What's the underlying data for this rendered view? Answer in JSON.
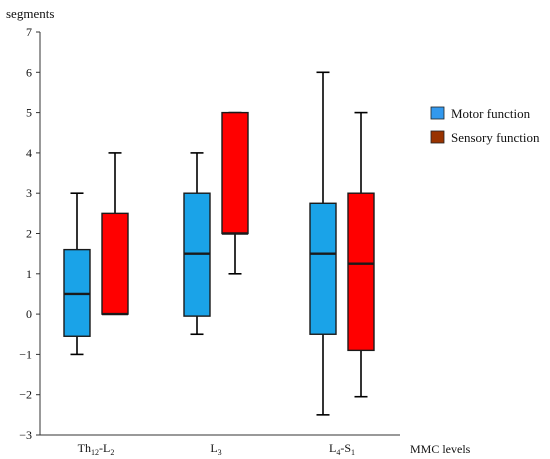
{
  "chart_data": {
    "type": "box",
    "ylabel": "segments",
    "xlabel": "MMC levels",
    "ylim": [
      -3,
      7
    ],
    "yticks": [
      -3,
      -2,
      -1,
      0,
      1,
      2,
      3,
      4,
      5,
      6,
      7
    ],
    "categories": [
      {
        "main": "Th",
        "sub1": "12",
        "mid": "-L",
        "sub2": "2"
      },
      {
        "main": "L",
        "sub1": "3",
        "mid": "",
        "sub2": ""
      },
      {
        "main": "L",
        "sub1": "4",
        "mid": "-S",
        "sub2": "1"
      }
    ],
    "series": [
      {
        "name": "Motor function",
        "color": "#1aa3e8",
        "legend_color": "#3399ee",
        "boxes": [
          {
            "min": -1,
            "q1": -0.55,
            "median": 0.5,
            "q3": 1.6,
            "max": 3
          },
          {
            "min": -0.5,
            "q1": -0.05,
            "median": 1.5,
            "q3": 3,
            "max": 4
          },
          {
            "min": -2.5,
            "q1": -0.5,
            "median": 1.5,
            "q3": 2.75,
            "max": 6
          }
        ]
      },
      {
        "name": "Sensory function",
        "color": "#ff0000",
        "legend_color": "#993300",
        "boxes": [
          {
            "min": 0,
            "q1": 0,
            "median": 0,
            "q3": 2.5,
            "max": 4
          },
          {
            "min": 1,
            "q1": 2,
            "median": 2,
            "q3": 5,
            "max": 5
          },
          {
            "min": -2.05,
            "q1": -0.9,
            "median": 1.25,
            "q3": 3,
            "max": 5
          }
        ]
      }
    ],
    "legend_position": "right"
  }
}
